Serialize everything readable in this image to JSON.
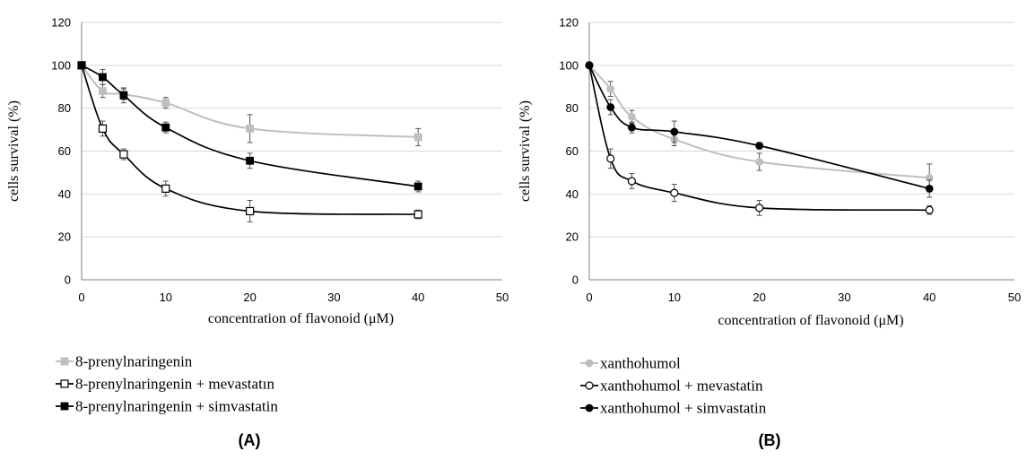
{
  "chart_data": [
    {
      "type": "line",
      "panel_label": "(A)",
      "xlabel": "concentration of flavonoid (μM)",
      "ylabel": "cells survival (%)",
      "xlim": [
        0,
        50
      ],
      "ylim": [
        0,
        120
      ],
      "x_ticks": [
        0,
        10,
        20,
        30,
        40,
        50
      ],
      "y_ticks": [
        0,
        20,
        40,
        60,
        80,
        100,
        120
      ],
      "grid": "horizontal",
      "legend_position": "bottom-left",
      "series": [
        {
          "name": "8-prenylnaringenin",
          "marker": "square-filled",
          "color": "#bfbfbf",
          "x": [
            0,
            2.5,
            5,
            10,
            20,
            40
          ],
          "y": [
            100,
            88,
            86.5,
            82.5,
            70.5,
            66.5
          ],
          "err": [
            0,
            3,
            2.5,
            2.5,
            6.5,
            4
          ]
        },
        {
          "name": "8-prenylnaringenin + mevastatın",
          "marker": "square-open",
          "color": "#000000",
          "x": [
            0,
            2.5,
            5,
            10,
            20,
            40
          ],
          "y": [
            100,
            70.5,
            58.5,
            42.5,
            32,
            30.5
          ],
          "err": [
            0,
            3.5,
            2.5,
            3.5,
            5,
            2
          ]
        },
        {
          "name": "8-prenylnaringenin + simvastatin",
          "marker": "square-filled",
          "color": "#000000",
          "x": [
            0,
            2.5,
            5,
            10,
            20,
            40
          ],
          "y": [
            100,
            94.5,
            86,
            71,
            55.5,
            43.5
          ],
          "err": [
            0,
            3.5,
            3.5,
            2.5,
            3.5,
            2.5
          ]
        }
      ]
    },
    {
      "type": "line",
      "panel_label": "(B)",
      "xlabel": "concentration of flavonoid (μM)",
      "ylabel": "cells survival (%)",
      "xlim": [
        0,
        50
      ],
      "ylim": [
        0,
        120
      ],
      "x_ticks": [
        0,
        10,
        20,
        30,
        40,
        50
      ],
      "y_ticks": [
        0,
        20,
        40,
        60,
        80,
        100,
        120
      ],
      "grid": "horizontal",
      "legend_position": "bottom-left",
      "series": [
        {
          "name": "xanthohumol",
          "marker": "circle-filled",
          "color": "#bfbfbf",
          "x": [
            0,
            2.5,
            5,
            10,
            20,
            40
          ],
          "y": [
            100,
            89,
            76,
            65.5,
            55,
            47.5
          ],
          "err": [
            0,
            3.5,
            3,
            3,
            4,
            6.5
          ]
        },
        {
          "name": "xanthohumol + mevastatin",
          "marker": "circle-open",
          "color": "#000000",
          "x": [
            0,
            2.5,
            5,
            10,
            20,
            40
          ],
          "y": [
            100,
            56.5,
            46,
            40.5,
            33.5,
            32.5
          ],
          "err": [
            0,
            4.5,
            3.5,
            4,
            3.5,
            2
          ]
        },
        {
          "name": "xanthohumol + simvastatin",
          "marker": "circle-filled",
          "color": "#000000",
          "x": [
            0,
            2.5,
            5,
            10,
            20,
            40
          ],
          "y": [
            100,
            80.5,
            71,
            69,
            62.5,
            42.5
          ],
          "err": [
            0,
            3.5,
            2.5,
            5,
            1.5,
            4
          ]
        }
      ]
    }
  ]
}
